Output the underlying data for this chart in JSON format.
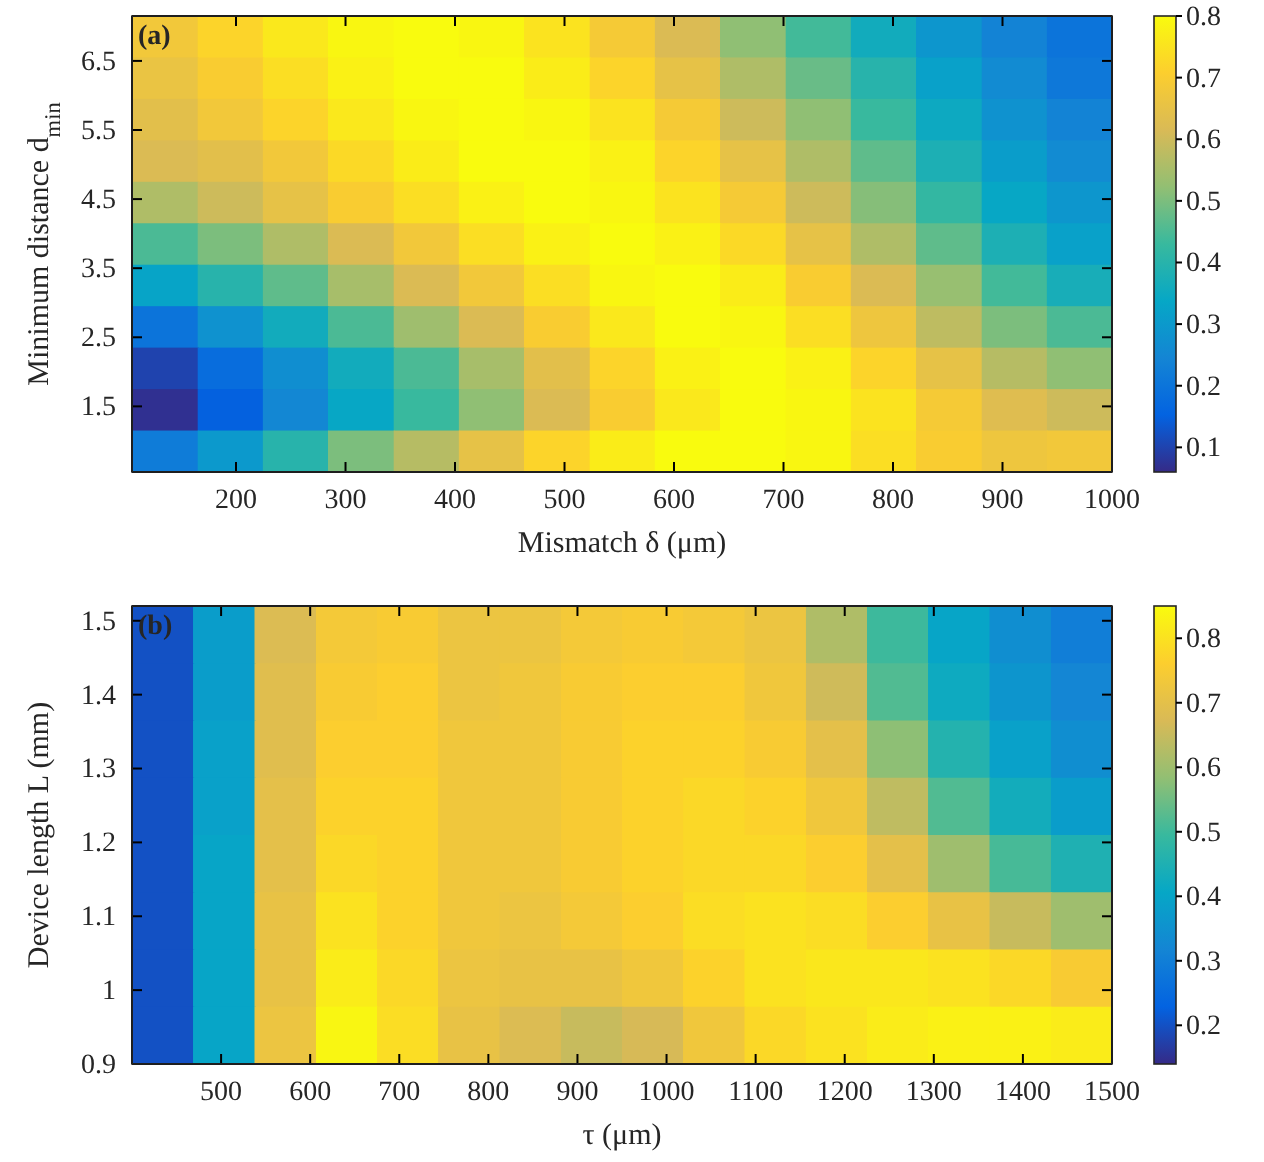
{
  "chart_data": [
    {
      "type": "heatmap",
      "title": "(a)",
      "xlabel": "Mismatch δ (μm)",
      "ylabel": "Minimum distance d$_{min}$",
      "x": [
        135,
        195,
        254,
        314,
        374,
        433,
        493,
        553,
        612,
        672,
        732,
        791,
        851,
        911,
        970
      ],
      "y": [
        6.85,
        6.25,
        5.65,
        5.05,
        4.45,
        3.85,
        3.25,
        2.65,
        2.05,
        1.45,
        0.85
      ],
      "xlim": [
        105,
        1000
      ],
      "xticks": [
        200,
        300,
        400,
        500,
        600,
        700,
        800,
        900,
        1000
      ],
      "ylim": [
        0.55,
        7.15
      ],
      "yticks": [
        1.5,
        2.5,
        3.5,
        4.5,
        5.5,
        6.5
      ],
      "clim": [
        0.06,
        0.8
      ],
      "cticks": [
        0.1,
        0.2,
        0.3,
        0.4,
        0.5,
        0.6,
        0.7,
        0.8
      ],
      "cells": [
        [
          0.68,
          0.72,
          0.76,
          0.79,
          0.8,
          0.79,
          0.75,
          0.69,
          0.62,
          0.52,
          0.44,
          0.36,
          0.29,
          0.24,
          0.2
        ],
        [
          0.66,
          0.7,
          0.74,
          0.78,
          0.8,
          0.8,
          0.77,
          0.72,
          0.65,
          0.56,
          0.48,
          0.4,
          0.32,
          0.26,
          0.21
        ],
        [
          0.64,
          0.68,
          0.72,
          0.76,
          0.79,
          0.8,
          0.79,
          0.75,
          0.69,
          0.6,
          0.52,
          0.43,
          0.35,
          0.28,
          0.24
        ],
        [
          0.62,
          0.64,
          0.68,
          0.73,
          0.77,
          0.8,
          0.8,
          0.78,
          0.72,
          0.65,
          0.56,
          0.47,
          0.38,
          0.31,
          0.26
        ],
        [
          0.56,
          0.6,
          0.65,
          0.7,
          0.74,
          0.78,
          0.8,
          0.79,
          0.75,
          0.69,
          0.6,
          0.51,
          0.42,
          0.34,
          0.29
        ],
        [
          0.45,
          0.5,
          0.56,
          0.62,
          0.68,
          0.74,
          0.78,
          0.8,
          0.78,
          0.73,
          0.65,
          0.56,
          0.47,
          0.38,
          0.32
        ],
        [
          0.33,
          0.4,
          0.47,
          0.55,
          0.62,
          0.68,
          0.74,
          0.79,
          0.8,
          0.77,
          0.7,
          0.62,
          0.53,
          0.44,
          0.37
        ],
        [
          0.2,
          0.28,
          0.36,
          0.45,
          0.54,
          0.62,
          0.7,
          0.76,
          0.8,
          0.79,
          0.74,
          0.67,
          0.58,
          0.5,
          0.45
        ],
        [
          0.1,
          0.18,
          0.27,
          0.36,
          0.45,
          0.55,
          0.64,
          0.72,
          0.78,
          0.8,
          0.78,
          0.72,
          0.65,
          0.57,
          0.52
        ],
        [
          0.07,
          0.15,
          0.25,
          0.34,
          0.43,
          0.52,
          0.62,
          0.7,
          0.76,
          0.8,
          0.79,
          0.75,
          0.69,
          0.63,
          0.6
        ],
        [
          0.22,
          0.3,
          0.4,
          0.5,
          0.57,
          0.65,
          0.72,
          0.77,
          0.8,
          0.8,
          0.79,
          0.74,
          0.7,
          0.67,
          0.68
        ]
      ]
    },
    {
      "type": "heatmap",
      "title": "(b)",
      "xlabel": "τ (μm)",
      "ylabel": "Device length L (mm)",
      "x": [
        434,
        503,
        572,
        641,
        709,
        778,
        847,
        916,
        984,
        1053,
        1122,
        1191,
        1259,
        1328,
        1397,
        1466
      ],
      "y": [
        1.481,
        1.404,
        1.326,
        1.249,
        1.171,
        1.094,
        1.016,
        0.939
      ],
      "xlim": [
        400,
        1500
      ],
      "xticks": [
        500,
        600,
        700,
        800,
        900,
        1000,
        1100,
        1200,
        1300,
        1400,
        1500
      ],
      "ylim": [
        0.9,
        1.52
      ],
      "yticks": [
        0.9,
        1,
        1.1,
        1.2,
        1.3,
        1.4,
        1.5
      ],
      "clim": [
        0.14,
        0.85
      ],
      "cticks": [
        0.2,
        0.3,
        0.4,
        0.5,
        0.6,
        0.7,
        0.8
      ],
      "cells": [
        [
          0.2,
          0.38,
          0.68,
          0.74,
          0.75,
          0.72,
          0.72,
          0.74,
          0.75,
          0.74,
          0.72,
          0.62,
          0.5,
          0.4,
          0.34,
          0.3
        ],
        [
          0.2,
          0.38,
          0.69,
          0.75,
          0.76,
          0.72,
          0.73,
          0.75,
          0.76,
          0.76,
          0.73,
          0.66,
          0.52,
          0.42,
          0.36,
          0.32
        ],
        [
          0.2,
          0.39,
          0.69,
          0.76,
          0.76,
          0.73,
          0.73,
          0.75,
          0.77,
          0.77,
          0.75,
          0.7,
          0.58,
          0.46,
          0.39,
          0.34
        ],
        [
          0.2,
          0.39,
          0.7,
          0.77,
          0.77,
          0.73,
          0.73,
          0.75,
          0.77,
          0.78,
          0.77,
          0.73,
          0.64,
          0.52,
          0.43,
          0.38
        ],
        [
          0.2,
          0.4,
          0.7,
          0.78,
          0.77,
          0.73,
          0.73,
          0.75,
          0.77,
          0.78,
          0.78,
          0.76,
          0.7,
          0.6,
          0.51,
          0.45
        ],
        [
          0.2,
          0.4,
          0.71,
          0.8,
          0.77,
          0.73,
          0.72,
          0.74,
          0.76,
          0.79,
          0.8,
          0.79,
          0.76,
          0.71,
          0.65,
          0.6
        ],
        [
          0.2,
          0.4,
          0.71,
          0.82,
          0.78,
          0.72,
          0.71,
          0.71,
          0.73,
          0.77,
          0.8,
          0.81,
          0.81,
          0.8,
          0.78,
          0.75
        ],
        [
          0.2,
          0.4,
          0.72,
          0.84,
          0.79,
          0.71,
          0.68,
          0.65,
          0.67,
          0.73,
          0.78,
          0.8,
          0.82,
          0.83,
          0.83,
          0.82
        ]
      ]
    }
  ]
}
